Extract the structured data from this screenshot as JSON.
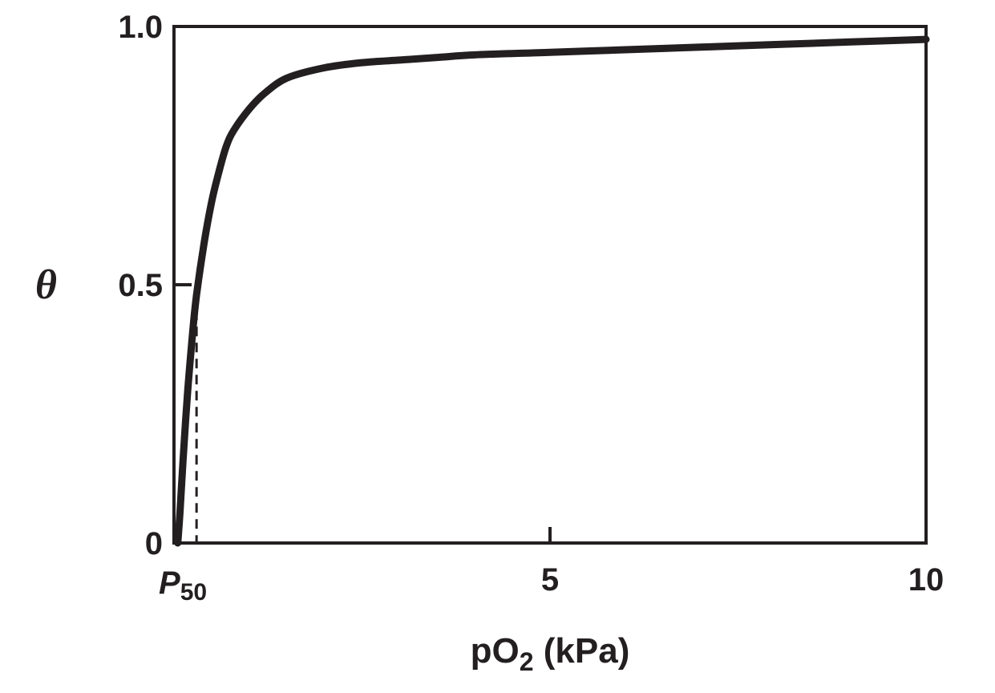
{
  "chart_data": {
    "type": "line",
    "xlabel_main": "pO",
    "xlabel_sub": "2",
    "xlabel_rest": " (kPa)",
    "ylabel": "θ",
    "xlim": [
      0,
      10
    ],
    "ylim": [
      0,
      1.0
    ],
    "x_ticks": [
      {
        "value": 0,
        "label": ""
      },
      {
        "value": 5,
        "label": "5"
      },
      {
        "value": 10,
        "label": "10"
      }
    ],
    "y_ticks": [
      {
        "value": 0,
        "label": "0"
      },
      {
        "value": 0.5,
        "label": "0.5"
      },
      {
        "value": 1.0,
        "label": "1.0"
      }
    ],
    "p50_label_main": "P",
    "p50_label_sub": "50",
    "p50_value": 0.3,
    "series": [
      {
        "color": "#231f20",
        "x": [
          0.05,
          0.08,
          0.12,
          0.18,
          0.25,
          0.3,
          0.4,
          0.5,
          0.6,
          0.7,
          0.8,
          1.0,
          1.2,
          1.5,
          2.0,
          2.5,
          3.0,
          3.5,
          4.0,
          5.0,
          6.0,
          7.0,
          8.0,
          9.0,
          10.0
        ],
        "y": [
          0.0,
          0.06,
          0.16,
          0.29,
          0.41,
          0.48,
          0.58,
          0.66,
          0.72,
          0.77,
          0.8,
          0.84,
          0.87,
          0.9,
          0.92,
          0.93,
          0.935,
          0.94,
          0.945,
          0.95,
          0.955,
          0.96,
          0.965,
          0.97,
          0.975
        ]
      }
    ]
  }
}
